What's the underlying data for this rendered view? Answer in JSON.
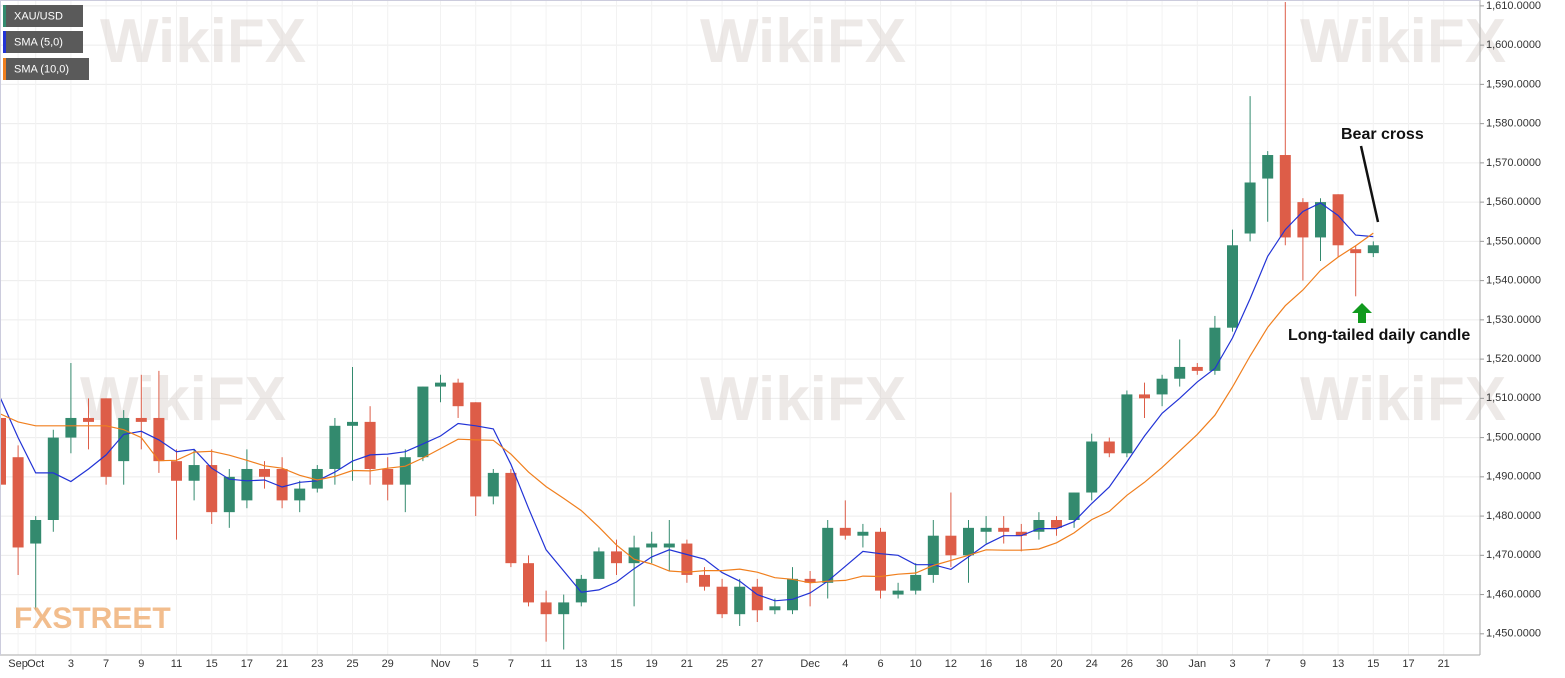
{
  "watermark": "WikiFX",
  "logo": "FXSTREET",
  "chart_data": {
    "type": "candlestick",
    "categories": [
      null,
      "Sep",
      "Oct",
      null,
      "3",
      null,
      "7",
      null,
      "9",
      null,
      "11",
      null,
      "15",
      null,
      "17",
      null,
      "21",
      null,
      "23",
      null,
      "25",
      null,
      "29",
      null,
      null,
      "Nov",
      null,
      "5",
      null,
      "7",
      null,
      "11",
      null,
      "13",
      null,
      "15",
      null,
      "19",
      null,
      "21",
      null,
      "25",
      null,
      "27",
      null,
      null,
      "Dec",
      null,
      "4",
      null,
      "6",
      null,
      "10",
      null,
      "12",
      null,
      "16",
      null,
      "18",
      null,
      "20",
      null,
      "24",
      null,
      "26",
      null,
      "30",
      null,
      "Jan",
      null,
      "3",
      null,
      "7",
      null,
      "9",
      null,
      "13",
      null,
      "15",
      null,
      "17",
      null,
      "21"
    ],
    "series": [
      {
        "name": "XAU/USD",
        "up_color": "#338a6e",
        "down_color": "#dd5d48",
        "open": [
          1505,
          1495,
          1473,
          1479,
          1500,
          1505,
          1510,
          1494,
          1505,
          1505,
          1494,
          1489,
          1493,
          1481,
          1484,
          1492,
          1492,
          1484,
          1487,
          1492,
          1503,
          1504,
          1492,
          1488,
          1495,
          1513,
          1514,
          1509,
          1485,
          1491,
          1468,
          1458,
          1455,
          1458,
          1464,
          1471,
          1468,
          1472,
          1472,
          1473,
          1465,
          1462,
          1455,
          1462,
          1456,
          1456,
          1464,
          1463,
          1477,
          1475,
          1476,
          1460,
          1461,
          1465,
          1475,
          1470,
          1476,
          1477,
          1476,
          1476,
          1479,
          1479,
          1486,
          1499,
          1496,
          1511,
          1511,
          1515,
          1518,
          1517,
          1528,
          1552,
          1566,
          1572,
          1560,
          1551,
          1562,
          1548,
          1547,
          null,
          null,
          null,
          null
        ],
        "high": [
          1508,
          1498,
          1480,
          1502,
          1519,
          1510,
          1510,
          1507,
          1516,
          1517,
          1497,
          1497,
          1497,
          1492,
          1497,
          1494,
          1495,
          1489,
          1493,
          1505,
          1518,
          1508,
          1495,
          1497,
          1513,
          1516,
          1515,
          1509,
          1492,
          1492,
          1470,
          1461,
          1460,
          1465,
          1472,
          1474,
          1475,
          1476,
          1479,
          1474,
          1467,
          1464,
          1464,
          1464,
          1459,
          1467,
          1466,
          1479,
          1484,
          1478,
          1477,
          1463,
          1468,
          1479,
          1486,
          1479,
          1480,
          1480,
          1478,
          1481,
          1480,
          1486,
          1501,
          1500,
          1512,
          1514,
          1516,
          1525,
          1519,
          1531,
          1553,
          1587,
          1573,
          1611,
          1561,
          1561,
          1562,
          1549,
          1550,
          null,
          null,
          null,
          null
        ],
        "low": [
          1487,
          1465,
          1456,
          1476,
          1496,
          1497,
          1488,
          1488,
          1497,
          1491,
          1474,
          1484,
          1478,
          1477,
          1482,
          1487,
          1482,
          1481,
          1486,
          1488,
          1489,
          1488,
          1484,
          1481,
          1494,
          1509,
          1505,
          1480,
          1483,
          1467,
          1457,
          1448,
          1446,
          1457,
          1464,
          1465,
          1457,
          1468,
          1466,
          1463,
          1461,
          1454,
          1452,
          1453,
          1455,
          1455,
          1457,
          1459,
          1474,
          1472,
          1459,
          1459,
          1460,
          1463,
          1467,
          1463,
          1473,
          1473,
          1471,
          1474,
          1475,
          1477,
          1484,
          1495,
          1495,
          1505,
          1508,
          1513,
          1516,
          1516,
          1527,
          1550,
          1555,
          1549,
          1540,
          1545,
          1546,
          1536,
          1546,
          null,
          null,
          null,
          null
        ],
        "close": [
          1488,
          1472,
          1479,
          1500,
          1505,
          1504,
          1490,
          1505,
          1504,
          1494,
          1489,
          1493,
          1481,
          1490,
          1492,
          1490,
          1484,
          1487,
          1492,
          1503,
          1504,
          1492,
          1488,
          1495,
          1513,
          1514,
          1508,
          1485,
          1491,
          1468,
          1458,
          1455,
          1458,
          1464,
          1471,
          1468,
          1472,
          1473,
          1473,
          1465,
          1462,
          1455,
          1462,
          1456,
          1457,
          1464,
          1463,
          1477,
          1475,
          1476,
          1461,
          1461,
          1465,
          1475,
          1470,
          1477,
          1477,
          1476,
          1475,
          1479,
          1477,
          1486,
          1499,
          1496,
          1511,
          1510,
          1515,
          1518,
          1517,
          1528,
          1549,
          1565,
          1572,
          1551,
          1551,
          1560,
          1549,
          1547,
          1549,
          null,
          null,
          null,
          null
        ]
      },
      {
        "name": "SMA (5,0)",
        "color": "#2233d6",
        "values": [
          1510,
          1500,
          1491,
          1491,
          1488.8,
          1492,
          1495.6,
          1500.8,
          1501.6,
          1499.4,
          1496.4,
          1497,
          1492.2,
          1489.4,
          1489,
          1489.2,
          1487.4,
          1488.6,
          1489,
          1491.2,
          1494,
          1495.6,
          1495.8,
          1496.4,
          1498.4,
          1500.4,
          1503.6,
          1503,
          1502.2,
          1493.2,
          1482,
          1471.4,
          1466,
          1460.6,
          1461.2,
          1463.2,
          1466.6,
          1469.6,
          1471.4,
          1470.2,
          1469,
          1465.6,
          1463.4,
          1460,
          1458.4,
          1458.8,
          1460.4,
          1463.4,
          1467.2,
          1471,
          1470.4,
          1470,
          1467.6,
          1467.6,
          1466.4,
          1469.6,
          1472.8,
          1475,
          1475,
          1476.8,
          1476.8,
          1478.6,
          1483.2,
          1487.4,
          1493.8,
          1500.4,
          1506.2,
          1510,
          1514.2,
          1517.6,
          1525.4,
          1535.4,
          1546.2,
          1553,
          1557.6,
          1559.8,
          1556.6,
          1551.6,
          1551.2,
          null,
          null,
          null,
          null
        ]
      },
      {
        "name": "SMA (10,0)",
        "color": "#f07f1e",
        "values": [
          1506,
          1504,
          1503,
          1503,
          1503,
          1503,
          1503,
          1502,
          1500,
          1494.1,
          1494.2,
          1496.3,
          1496.5,
          1495.5,
          1494.2,
          1492.8,
          1492.2,
          1490.4,
          1489.2,
          1490.1,
          1491.6,
          1491.5,
          1492.2,
          1492.7,
          1494.8,
          1497.2,
          1499.6,
          1499.4,
          1499.3,
          1495.8,
          1491.2,
          1487.5,
          1484.5,
          1481.4,
          1477.2,
          1472.6,
          1469,
          1467.8,
          1466,
          1465.7,
          1466.1,
          1466.1,
          1466.5,
          1465.7,
          1464.3,
          1463.9,
          1463,
          1463.4,
          1463.6,
          1464.7,
          1464.6,
          1465.2,
          1465.5,
          1467.4,
          1468.7,
          1470,
          1471.4,
          1471.3,
          1471.3,
          1471.6,
          1473.2,
          1475.7,
          1479.1,
          1481.2,
          1485.3,
          1488.6,
          1492.4,
          1496.6,
          1500.8,
          1505.7,
          1512.9,
          1520.8,
          1528.1,
          1533.6,
          1537.6,
          1542.6,
          1546,
          1548.9,
          1552.1,
          null,
          null,
          null,
          null
        ]
      }
    ],
    "ylim": [
      1444.6,
      1611.5
    ],
    "yticks": [
      {
        "value": 1450,
        "label": "1,450.0000"
      },
      {
        "value": 1460,
        "label": "1,460.0000"
      },
      {
        "value": 1470,
        "label": "1,470.0000"
      },
      {
        "value": 1480,
        "label": "1,480.0000"
      },
      {
        "value": 1490,
        "label": "1,490.0000"
      },
      {
        "value": 1500,
        "label": "1,500.0000"
      },
      {
        "value": 1510,
        "label": "1,510.0000"
      },
      {
        "value": 1520,
        "label": "1,520.0000"
      },
      {
        "value": 1530,
        "label": "1,530.0000"
      },
      {
        "value": 1540,
        "label": "1,540.0000"
      },
      {
        "value": 1550,
        "label": "1,550.0000"
      },
      {
        "value": 1560,
        "label": "1,560.0000"
      },
      {
        "value": 1570,
        "label": "1,570.0000"
      },
      {
        "value": 1580,
        "label": "1,580.0000"
      },
      {
        "value": 1590,
        "label": "1,590.0000"
      },
      {
        "value": 1600,
        "label": "1,600.0000"
      },
      {
        "value": 1610,
        "label": "1,610.0000"
      }
    ],
    "grid": true,
    "annotations": [
      "Bear cross",
      "Long-tailed daily candle"
    ]
  }
}
